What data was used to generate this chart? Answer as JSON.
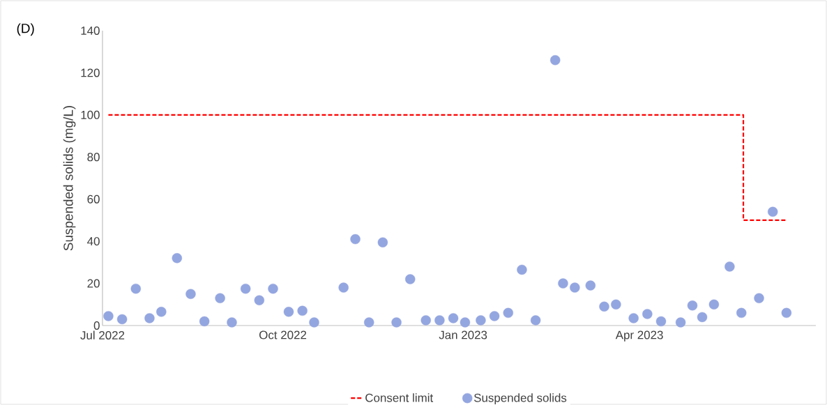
{
  "chart_data": {
    "type": "scatter",
    "ylabel": "Suspended solids (mg/L)",
    "annotations": [
      "(D)"
    ],
    "xlim": [
      "2022-07-01",
      "2023-06-30"
    ],
    "ylim": [
      0,
      140
    ],
    "yticks": [
      0,
      20,
      40,
      60,
      80,
      100,
      120,
      140
    ],
    "xticks": [
      {
        "value": "2022-07-01",
        "label": "Jul 2022"
      },
      {
        "value": "2022-10-01",
        "label": "Oct 2022"
      },
      {
        "value": "2023-01-01",
        "label": "Jan 2023"
      },
      {
        "value": "2023-04-01",
        "label": "Apr 2023"
      }
    ],
    "grid": false,
    "legend": "bottom",
    "series": [
      {
        "name": "Consent limit",
        "type": "line",
        "color": "#ff0000",
        "line_style": "dashed",
        "marker": "none",
        "x": [
          "2022-07-04",
          "2023-05-24",
          "2023-05-24",
          "2023-06-15"
        ],
        "values": [
          100,
          100,
          50,
          50
        ]
      },
      {
        "name": "Suspended solids",
        "color": "#94a6e0",
        "marker": "circle",
        "x": [
          "2022-07-04",
          "2022-07-11",
          "2022-07-18",
          "2022-07-25",
          "2022-07-31",
          "2022-08-08",
          "2022-08-15",
          "2022-08-22",
          "2022-08-30",
          "2022-09-05",
          "2022-09-12",
          "2022-09-19",
          "2022-09-26",
          "2022-10-04",
          "2022-10-11",
          "2022-10-17",
          "2022-11-01",
          "2022-11-07",
          "2022-11-14",
          "2022-11-21",
          "2022-11-28",
          "2022-12-05",
          "2022-12-13",
          "2022-12-20",
          "2022-12-27",
          "2023-01-02",
          "2023-01-10",
          "2023-01-17",
          "2023-01-24",
          "2023-01-31",
          "2023-02-07",
          "2023-02-17",
          "2023-02-21",
          "2023-02-27",
          "2023-03-07",
          "2023-03-14",
          "2023-03-20",
          "2023-03-29",
          "2023-04-05",
          "2023-04-12",
          "2023-04-22",
          "2023-04-28",
          "2023-05-03",
          "2023-05-09",
          "2023-05-17",
          "2023-05-23",
          "2023-06-01",
          "2023-06-08",
          "2023-06-15"
        ],
        "values": [
          4.5,
          3,
          17.5,
          3.5,
          6.5,
          32,
          15,
          2,
          13,
          1.5,
          17.5,
          12,
          17.5,
          6.5,
          7,
          1.5,
          18,
          41,
          1.5,
          39.5,
          1.5,
          22,
          2.5,
          2.5,
          3.5,
          1.5,
          2.5,
          4.5,
          6,
          26.5,
          2.5,
          126,
          20,
          18,
          19,
          9,
          10,
          3.5,
          5.5,
          2,
          1.5,
          9.5,
          4,
          10,
          28,
          6,
          13,
          54,
          6
        ]
      }
    ]
  }
}
